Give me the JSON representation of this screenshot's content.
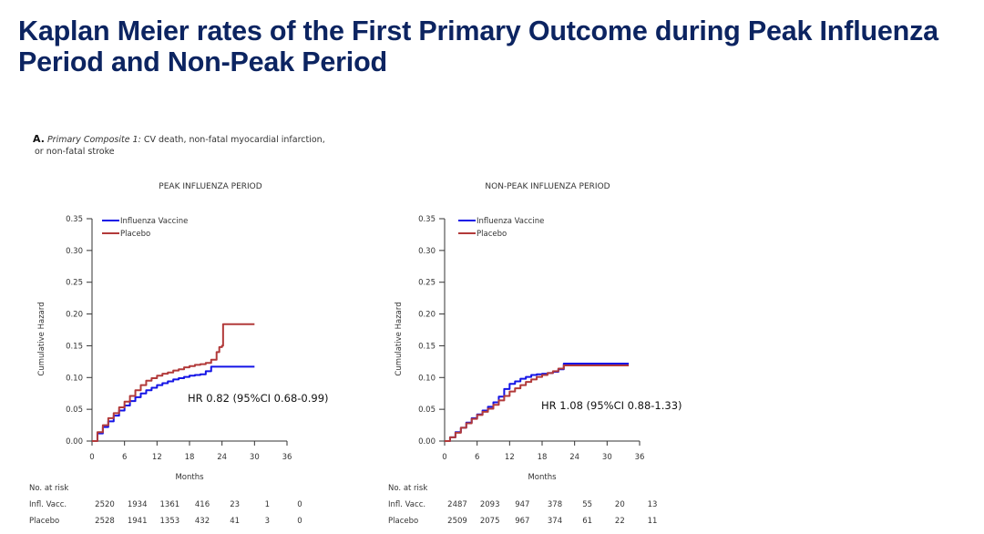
{
  "title": {
    "line1": "Kaplan Meier rates of the First Primary Outcome during Peak Influenza",
    "line2": "Period and Non-Peak Period"
  },
  "panel": {
    "letter": "A.",
    "subtitle_italic": "Primary Composite 1:",
    "subtitle_rest": "CV death, non-fatal myocardial infarction,",
    "subtitle_line2": "or non-fatal stroke"
  },
  "colors": {
    "vaccine": "#1414e6",
    "placebo": "#b23a3a",
    "title": "#0c2461"
  },
  "chart_data": [
    {
      "type": "line",
      "title": "PEAK INFLUENZA PERIOD",
      "xlabel": "Months",
      "ylabel": "Cumulative Hazard",
      "xlim": [
        0,
        36
      ],
      "ylim": [
        0,
        0.35
      ],
      "xticks": [
        0,
        6,
        12,
        18,
        24,
        30,
        36
      ],
      "yticks": [
        0.0,
        0.05,
        0.1,
        0.15,
        0.2,
        0.25,
        0.3,
        0.35
      ],
      "legend_position": "top-left",
      "annotation": "HR 0.82 (95%CI 0.68-0.99)",
      "series": [
        {
          "name": "Influenza Vaccine",
          "color_key": "vaccine",
          "points": [
            [
              0,
              0
            ],
            [
              1,
              0.012
            ],
            [
              2,
              0.022
            ],
            [
              3,
              0.031
            ],
            [
              4,
              0.04
            ],
            [
              5,
              0.048
            ],
            [
              6,
              0.056
            ],
            [
              7,
              0.063
            ],
            [
              8,
              0.069
            ],
            [
              9,
              0.075
            ],
            [
              10,
              0.08
            ],
            [
              11,
              0.084
            ],
            [
              12,
              0.088
            ],
            [
              13,
              0.091
            ],
            [
              14,
              0.094
            ],
            [
              15,
              0.097
            ],
            [
              16,
              0.099
            ],
            [
              17,
              0.101
            ],
            [
              18,
              0.103
            ],
            [
              19,
              0.104
            ],
            [
              20,
              0.105
            ],
            [
              21,
              0.11
            ],
            [
              22,
              0.117
            ],
            [
              23,
              0.117
            ],
            [
              24,
              0.117
            ],
            [
              26,
              0.117
            ],
            [
              28,
              0.117
            ],
            [
              30,
              0.117
            ]
          ]
        },
        {
          "name": "Placebo",
          "color_key": "placebo",
          "points": [
            [
              0,
              0
            ],
            [
              1,
              0.014
            ],
            [
              2,
              0.025
            ],
            [
              3,
              0.036
            ],
            [
              4,
              0.044
            ],
            [
              5,
              0.053
            ],
            [
              6,
              0.062
            ],
            [
              7,
              0.071
            ],
            [
              8,
              0.08
            ],
            [
              9,
              0.088
            ],
            [
              10,
              0.095
            ],
            [
              11,
              0.099
            ],
            [
              12,
              0.103
            ],
            [
              13,
              0.106
            ],
            [
              14,
              0.108
            ],
            [
              15,
              0.111
            ],
            [
              16,
              0.113
            ],
            [
              17,
              0.116
            ],
            [
              18,
              0.118
            ],
            [
              19,
              0.12
            ],
            [
              20,
              0.121
            ],
            [
              21,
              0.123
            ],
            [
              22,
              0.128
            ],
            [
              23,
              0.14
            ],
            [
              23.5,
              0.148
            ],
            [
              24,
              0.15
            ],
            [
              24.2,
              0.184
            ],
            [
              26,
              0.184
            ],
            [
              28,
              0.184
            ],
            [
              30,
              0.184
            ]
          ]
        }
      ],
      "risk_table": {
        "header": "No. at risk",
        "rows": [
          {
            "label": "Infl. Vacc.",
            "values": [
              "2520",
              "1934",
              "1361",
              "416",
              "23",
              "1",
              "0"
            ]
          },
          {
            "label": "Placebo",
            "values": [
              "2528",
              "1941",
              "1353",
              "432",
              "41",
              "3",
              "0"
            ]
          }
        ]
      }
    },
    {
      "type": "line",
      "title": "NON-PEAK INFLUENZA PERIOD",
      "xlabel": "Months",
      "ylabel": "Cumulative Hazard",
      "xlim": [
        0,
        36
      ],
      "ylim": [
        0,
        0.35
      ],
      "xticks": [
        0,
        6,
        12,
        18,
        24,
        30,
        36
      ],
      "yticks": [
        0.0,
        0.05,
        0.1,
        0.15,
        0.2,
        0.25,
        0.3,
        0.35
      ],
      "legend_position": "top-left",
      "annotation": "HR 1.08 (95%CI 0.88-1.33)",
      "series": [
        {
          "name": "Influenza Vaccine",
          "color_key": "vaccine",
          "points": [
            [
              0,
              0
            ],
            [
              1,
              0.006
            ],
            [
              2,
              0.014
            ],
            [
              3,
              0.021
            ],
            [
              4,
              0.029
            ],
            [
              5,
              0.036
            ],
            [
              6,
              0.042
            ],
            [
              7,
              0.048
            ],
            [
              8,
              0.054
            ],
            [
              9,
              0.061
            ],
            [
              10,
              0.07
            ],
            [
              11,
              0.082
            ],
            [
              12,
              0.09
            ],
            [
              13,
              0.094
            ],
            [
              14,
              0.098
            ],
            [
              15,
              0.101
            ],
            [
              16,
              0.104
            ],
            [
              17,
              0.105
            ],
            [
              18,
              0.106
            ],
            [
              19,
              0.107
            ],
            [
              20,
              0.109
            ],
            [
              21,
              0.113
            ],
            [
              22,
              0.122
            ],
            [
              24,
              0.122
            ],
            [
              26,
              0.122
            ],
            [
              28,
              0.122
            ],
            [
              30,
              0.122
            ],
            [
              32,
              0.122
            ],
            [
              34,
              0.122
            ]
          ]
        },
        {
          "name": "Placebo",
          "color_key": "placebo",
          "points": [
            [
              0,
              0
            ],
            [
              1,
              0.006
            ],
            [
              2,
              0.013
            ],
            [
              3,
              0.021
            ],
            [
              4,
              0.028
            ],
            [
              5,
              0.035
            ],
            [
              6,
              0.041
            ],
            [
              7,
              0.046
            ],
            [
              8,
              0.051
            ],
            [
              9,
              0.057
            ],
            [
              10,
              0.064
            ],
            [
              11,
              0.071
            ],
            [
              12,
              0.078
            ],
            [
              13,
              0.083
            ],
            [
              14,
              0.088
            ],
            [
              15,
              0.093
            ],
            [
              16,
              0.097
            ],
            [
              17,
              0.101
            ],
            [
              18,
              0.104
            ],
            [
              19,
              0.107
            ],
            [
              20,
              0.11
            ],
            [
              21,
              0.114
            ],
            [
              22,
              0.119
            ],
            [
              24,
              0.119
            ],
            [
              26,
              0.119
            ],
            [
              28,
              0.119
            ],
            [
              30,
              0.119
            ],
            [
              32,
              0.119
            ],
            [
              34,
              0.119
            ]
          ]
        }
      ],
      "risk_table": {
        "header": "No. at risk",
        "rows": [
          {
            "label": "Infl. Vacc.",
            "values": [
              "2487",
              "2093",
              "947",
              "378",
              "55",
              "20",
              "13"
            ]
          },
          {
            "label": "Placebo",
            "values": [
              "2509",
              "2075",
              "967",
              "374",
              "61",
              "22",
              "11"
            ]
          }
        ]
      }
    }
  ]
}
